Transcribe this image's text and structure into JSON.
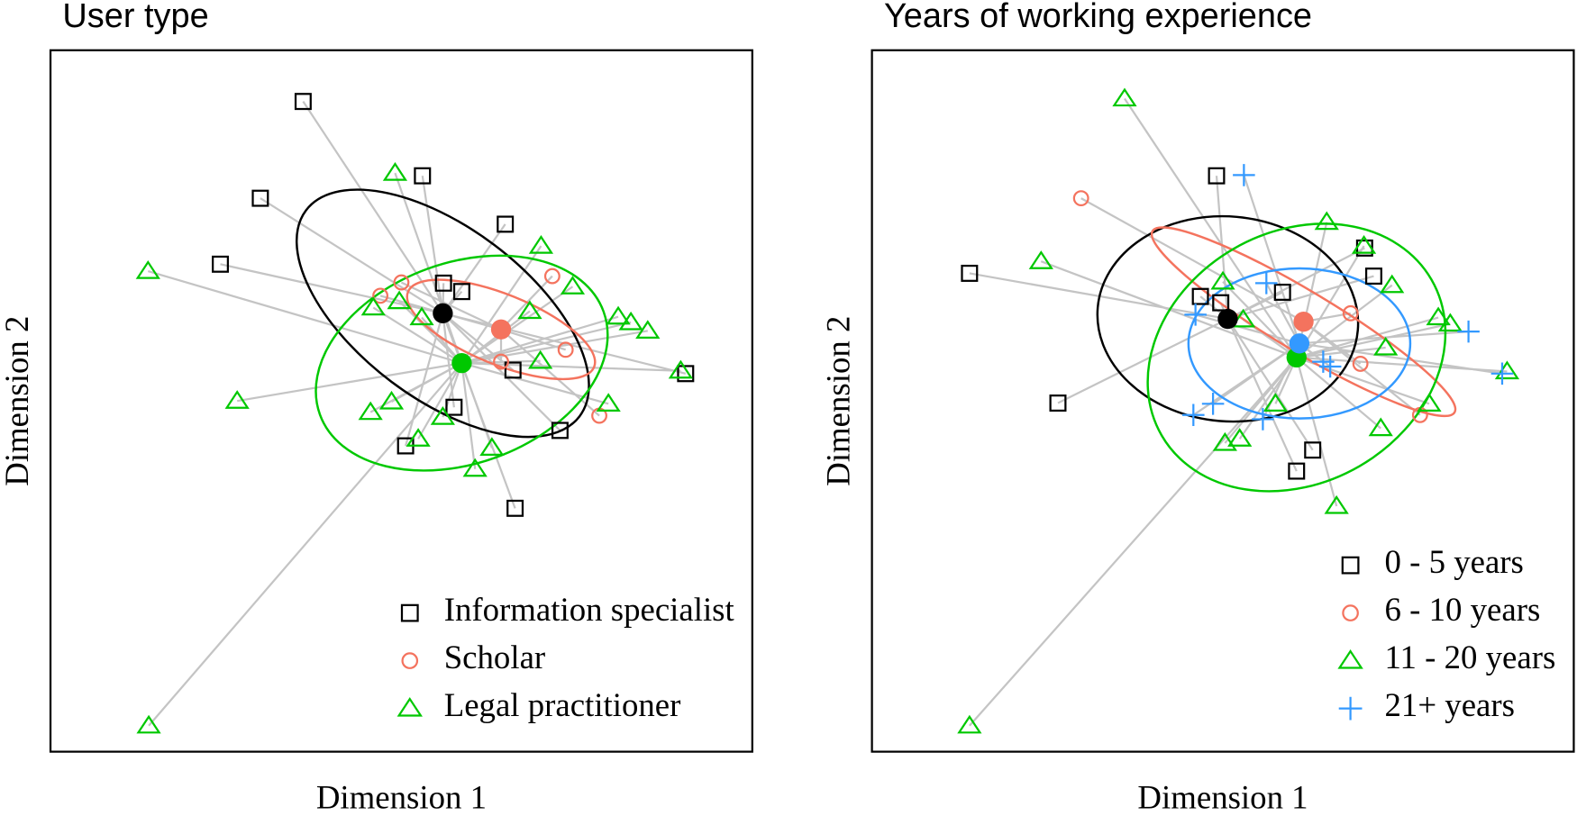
{
  "chart_data": [
    {
      "type": "scatter",
      "title": "User type",
      "xlabel": "Dimension 1",
      "ylabel": "Dimension 2",
      "xlim": [
        0,
        100
      ],
      "ylim": [
        0,
        100
      ],
      "legend": "lower right",
      "series": [
        {
          "name": "Information specialist",
          "color": "#000000",
          "marker": "square",
          "x": [
            36.0,
            53.0,
            29.9,
            64.8,
            24.2,
            56.0,
            58.6,
            65.9,
            57.5,
            72.6,
            50.6,
            66.2,
            90.5
          ],
          "y": [
            92.7,
            82.1,
            78.9,
            75.2,
            69.5,
            66.8,
            65.6,
            54.4,
            49.1,
            45.8,
            43.6,
            34.7,
            53.9
          ],
          "centroid": {
            "x": 55.9,
            "y": 62.5
          },
          "ellipse": {
            "rx": 24.4,
            "ry": 12.2,
            "angle": -37
          }
        },
        {
          "name": "Scholar",
          "color": "#f4735e",
          "marker": "circle",
          "x": [
            50.0,
            47.0,
            71.5,
            64.2,
            73.4,
            78.2
          ],
          "y": [
            66.9,
            65.0,
            67.8,
            55.6,
            57.3,
            47.9
          ],
          "centroid": {
            "x": 64.2,
            "y": 60.2
          },
          "ellipse": {
            "rx": 14.3,
            "ry": 5.0,
            "angle": -22
          }
        },
        {
          "name": "Legal practitioner",
          "color": "#00c800",
          "marker": "triangle",
          "x": [
            13.9,
            49.1,
            69.9,
            74.4,
            49.7,
            46.0,
            52.9,
            68.3,
            80.9,
            82.7,
            85.1,
            69.8,
            89.8,
            26.6,
            48.6,
            45.6,
            55.9,
            79.5,
            52.4,
            62.9,
            60.5,
            14.0
          ],
          "y": [
            68.5,
            82.5,
            72.1,
            66.3,
            64.2,
            63.3,
            61.9,
            62.8,
            62.0,
            61.2,
            60.0,
            55.7,
            54.3,
            50.0,
            49.9,
            48.4,
            47.7,
            49.6,
            44.6,
            43.3,
            40.3,
            3.7
          ],
          "centroid": {
            "x": 58.6,
            "y": 55.4
          },
          "ellipse": {
            "rx": 21.5,
            "ry": 14.3,
            "angle": 20
          }
        }
      ]
    },
    {
      "type": "scatter",
      "title": "Years of working experience",
      "xlabel": "Dimension 1",
      "ylabel": "Dimension 2",
      "xlim": [
        0,
        100
      ],
      "ylim": [
        0,
        100
      ],
      "legend": "lower right",
      "series": [
        {
          "name": "0 - 5 years",
          "color": "#000000",
          "marker": "square",
          "x": [
            49.1,
            13.9,
            70.2,
            71.5,
            46.8,
            49.7,
            58.5,
            26.5,
            62.8,
            60.5
          ],
          "y": [
            82.1,
            68.2,
            71.8,
            67.8,
            64.9,
            64.0,
            65.5,
            49.7,
            43.0,
            40.0
          ],
          "centroid": {
            "x": 50.7,
            "y": 61.7
          },
          "ellipse": {
            "rx": 18.6,
            "ry": 14.6,
            "angle": -5
          }
        },
        {
          "name": "6 - 10 years",
          "color": "#f4735e",
          "marker": "circle",
          "x": [
            29.8,
            68.2,
            69.6,
            78.1
          ],
          "y": [
            78.9,
            62.5,
            55.3,
            48.0
          ],
          "centroid": {
            "x": 61.5,
            "y": 61.3
          },
          "ellipse": {
            "rx": 25.1,
            "ry": 4.3,
            "angle": -31
          }
        },
        {
          "name": "11 - 20 years",
          "color": "#00c800",
          "marker": "triangle",
          "x": [
            36.0,
            64.8,
            70.1,
            24.1,
            50.0,
            74.1,
            52.9,
            80.7,
            82.4,
            73.2,
            90.5,
            57.5,
            79.4,
            72.5,
            50.3,
            52.4,
            66.2,
            13.9
          ],
          "y": [
            93.1,
            75.5,
            72.1,
            69.9,
            67.0,
            66.5,
            61.6,
            61.9,
            61.0,
            57.6,
            54.2,
            49.6,
            49.6,
            46.1,
            44.0,
            44.6,
            35.0,
            3.7
          ],
          "centroid": {
            "x": 60.5,
            "y": 56.2
          },
          "ellipse": {
            "rx": 22.2,
            "ry": 17.9,
            "angle": 30
          }
        },
        {
          "name": "21+ years",
          "color": "#3399ff",
          "marker": "plus",
          "x": [
            53.0,
            56.2,
            46.1,
            85.0,
            64.3,
            89.8,
            48.6,
            45.8,
            55.7,
            65.3
          ],
          "y": [
            82.2,
            66.8,
            62.3,
            59.9,
            55.6,
            53.9,
            49.6,
            48.0,
            47.4,
            54.9
          ],
          "centroid": {
            "x": 60.9,
            "y": 58.2
          },
          "ellipse": {
            "rx": 15.8,
            "ry": 10.7,
            "angle": 0
          }
        }
      ]
    }
  ]
}
